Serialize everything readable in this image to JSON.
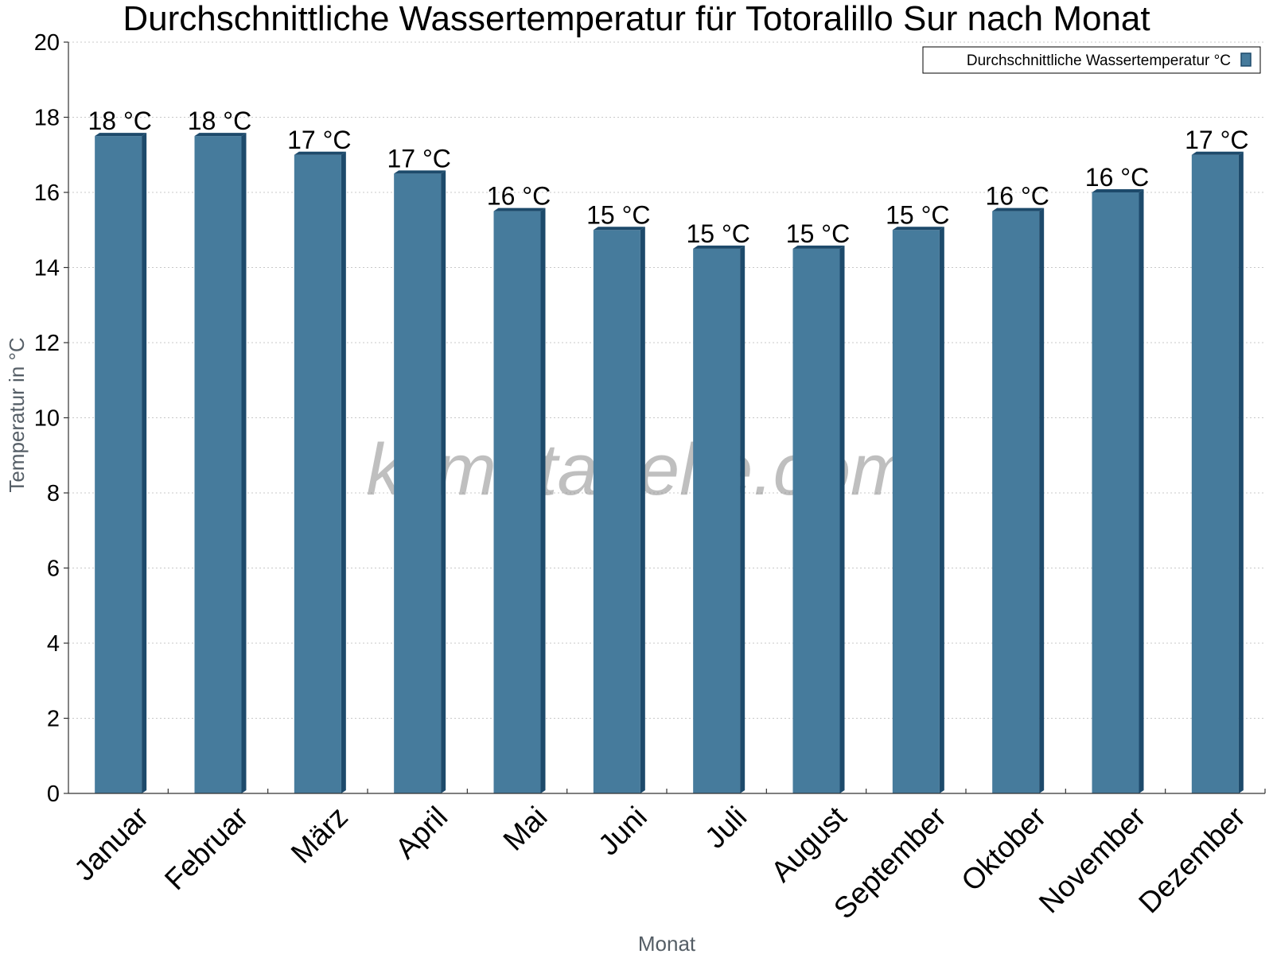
{
  "chart_data": {
    "type": "bar",
    "title": "Durchschnittliche Wassertemperatur für Totoralillo Sur nach Monat",
    "xlabel": "Monat",
    "ylabel": "Temperatur in °C",
    "categories": [
      "Januar",
      "Februar",
      "März",
      "April",
      "Mai",
      "Juni",
      "Juli",
      "August",
      "September",
      "Oktober",
      "November",
      "Dezember"
    ],
    "series": [
      {
        "name": "Durchschnittliche Wassertemperatur °C",
        "values": [
          17.5,
          17.5,
          17.0,
          16.5,
          15.5,
          15.0,
          14.5,
          14.5,
          15.0,
          15.5,
          16.0,
          17.0
        ],
        "labels": [
          "18 °C",
          "18 °C",
          "17 °C",
          "17 °C",
          "16 °C",
          "15 °C",
          "15 °C",
          "15 °C",
          "15 °C",
          "16 °C",
          "16 °C",
          "17 °C"
        ],
        "color": "#467b9c",
        "side_color": "#1d4a6b"
      }
    ],
    "ylim": [
      0,
      20
    ],
    "yticks": [
      0,
      2,
      4,
      6,
      8,
      10,
      12,
      14,
      16,
      18,
      20
    ],
    "grid": true,
    "legend_position": "top-right",
    "watermark": "klimatabelle.com"
  }
}
